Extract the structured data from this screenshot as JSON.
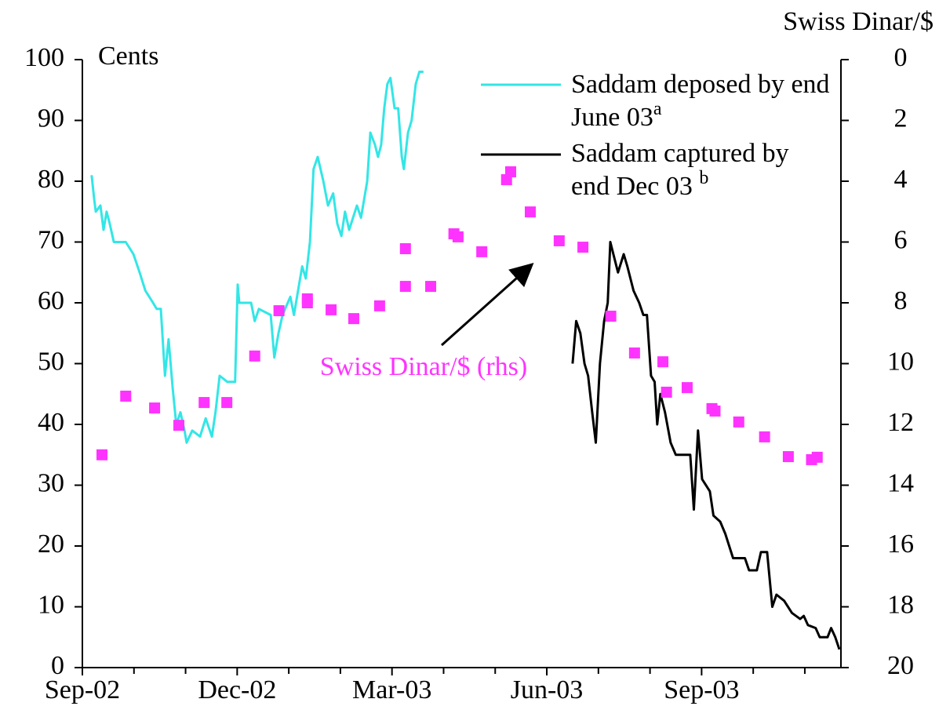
{
  "chart_data": {
    "type": "line",
    "ylabel": "Cents",
    "y2label": "Swiss Dinar/$",
    "xlim": [
      0,
      14.7
    ],
    "xticks": [
      {
        "value": 0,
        "label": "Sep-02"
      },
      {
        "value": 3,
        "label": "Dec-02"
      },
      {
        "value": 6,
        "label": "Mar-03"
      },
      {
        "value": 9,
        "label": "Jun-03"
      },
      {
        "value": 12,
        "label": "Sep-03"
      }
    ],
    "xminorticks": [
      1,
      2,
      4,
      5,
      7,
      8,
      10,
      11,
      13,
      14
    ],
    "ylim": [
      0,
      100
    ],
    "yticks": [
      0,
      10,
      20,
      30,
      40,
      50,
      60,
      70,
      80,
      90,
      100
    ],
    "y2lim": [
      0,
      20
    ],
    "y2reversed": true,
    "y2ticks": [
      0,
      2,
      4,
      6,
      8,
      10,
      12,
      14,
      16,
      18,
      20
    ],
    "series": [
      {
        "name": "Saddam deposed by end June 03",
        "note": "a",
        "color": "#33e6e6",
        "x": [
          0.18,
          0.23,
          0.26,
          0.35,
          0.41,
          0.47,
          0.53,
          0.61,
          0.84,
          0.99,
          1.11,
          1.22,
          1.37,
          1.44,
          1.52,
          1.6,
          1.67,
          1.75,
          1.82,
          1.9,
          1.98,
          2.02,
          2.13,
          2.28,
          2.39,
          2.51,
          2.58,
          2.66,
          2.81,
          2.96,
          3.01,
          3.04,
          3.27,
          3.34,
          3.42,
          3.65,
          3.72,
          3.8,
          3.88,
          4.03,
          4.1,
          4.26,
          4.33,
          4.41,
          4.48,
          4.56,
          4.67,
          4.76,
          4.86,
          4.94,
          5.02,
          5.09,
          5.17,
          5.32,
          5.4,
          5.52,
          5.58,
          5.67,
          5.73,
          5.79,
          5.85,
          5.91,
          5.97,
          6.05,
          6.12,
          6.19,
          6.23,
          6.31,
          6.38,
          6.46,
          6.53,
          6.61
        ],
        "values": [
          81,
          77,
          75,
          76,
          72,
          75,
          73,
          70,
          70,
          68,
          65,
          62,
          60,
          59,
          59,
          48,
          54,
          46,
          40,
          42,
          39,
          37,
          39,
          38,
          41,
          38,
          42,
          48,
          47,
          47,
          63,
          60,
          60,
          57,
          59,
          58,
          51,
          55,
          58,
          61,
          58,
          66,
          64,
          70,
          82,
          84,
          80,
          76,
          78,
          73,
          71,
          75,
          72,
          76,
          74,
          80,
          88,
          86,
          84,
          86,
          92,
          96,
          97,
          92,
          92,
          84,
          82,
          88,
          90,
          96,
          98,
          98
        ]
      },
      {
        "name": "Saddam captured by end Dec 03",
        "note": "b",
        "color": "#000000",
        "x": [
          9.5,
          9.57,
          9.65,
          9.73,
          9.8,
          9.88,
          9.95,
          10.03,
          10.11,
          10.18,
          10.23,
          10.29,
          10.38,
          10.49,
          10.56,
          10.68,
          10.79,
          10.87,
          10.94,
          11.02,
          11.09,
          11.14,
          11.2,
          11.29,
          11.4,
          11.5,
          11.78,
          11.85,
          11.93,
          12.01,
          12.16,
          12.23,
          12.36,
          12.46,
          12.61,
          12.84,
          12.92,
          13.07,
          13.15,
          13.27,
          13.37,
          13.45,
          13.6,
          13.75,
          13.91,
          13.98,
          14.06,
          14.21,
          14.29,
          14.44,
          14.51,
          14.59,
          14.67
        ],
        "values": [
          50,
          57,
          55,
          50,
          48,
          42,
          37,
          50,
          57,
          60,
          70,
          68,
          65,
          68,
          66,
          62,
          60,
          58,
          58,
          48,
          47,
          40,
          45,
          42,
          37,
          35,
          35,
          26,
          39,
          31,
          29,
          25,
          24,
          22,
          18,
          18,
          16,
          16,
          19,
          19,
          10,
          12,
          11,
          9,
          8,
          8.5,
          7,
          6.5,
          5,
          5,
          6.5,
          5,
          3
        ]
      },
      {
        "name": "Swiss Dinar/$ (rhs)",
        "color": "#ff33ff",
        "axis": "y2",
        "marker": "square",
        "x": [
          0.38,
          0.84,
          1.4,
          1.87,
          2.36,
          2.8,
          3.34,
          3.81,
          4.36,
          4.36,
          4.82,
          5.26,
          5.76,
          6.26,
          6.26,
          6.75,
          7.2,
          7.28,
          7.74,
          8.22,
          8.3,
          8.68,
          9.24,
          9.7,
          10.24,
          10.7,
          11.25,
          11.32,
          11.72,
          12.2,
          12.26,
          12.72,
          13.22,
          13.68,
          14.13,
          14.24
        ],
        "values": [
          13.0,
          11.07,
          11.46,
          12.03,
          11.28,
          11.28,
          9.75,
          8.26,
          7.87,
          8.0,
          8.23,
          8.52,
          8.1,
          6.22,
          7.46,
          7.46,
          5.73,
          5.83,
          6.32,
          3.95,
          3.69,
          5.01,
          5.96,
          6.17,
          8.44,
          9.65,
          9.94,
          10.94,
          10.79,
          11.48,
          11.56,
          11.92,
          12.41,
          13.06,
          13.16,
          13.08
        ]
      }
    ]
  }
}
